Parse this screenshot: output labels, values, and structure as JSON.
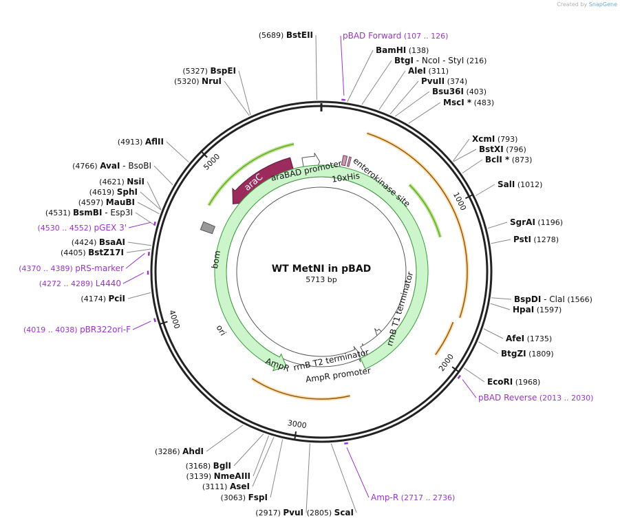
{
  "watermark": {
    "prefix": "Created by",
    "brand": "SnapGene"
  },
  "plasmid": {
    "name": "WT MetNI in pBAD",
    "size_label": "5713 bp",
    "length": 5713
  },
  "ticks": [
    {
      "pos": 1000,
      "label": "1000"
    },
    {
      "pos": 2000,
      "label": "2000"
    },
    {
      "pos": 3000,
      "label": "3000"
    },
    {
      "pos": 4000,
      "label": "4000"
    },
    {
      "pos": 5000,
      "label": "5000"
    }
  ],
  "sites_right": [
    {
      "name": "BamHI",
      "pos": 138,
      "coord": "(138)"
    },
    {
      "name": "BtgI",
      "extra": "NcoI - StyI",
      "pos": 216,
      "coord": "(216)"
    },
    {
      "name": "AleI",
      "pos": 311,
      "coord": "(311)"
    },
    {
      "name": "PvuII",
      "pos": 374,
      "coord": "(374)"
    },
    {
      "name": "Bsu36I",
      "pos": 403,
      "coord": "(403)"
    },
    {
      "name": "MscI *",
      "pos": 483,
      "coord": "(483)"
    },
    {
      "name": "XcmI",
      "pos": 793,
      "coord": "(793)"
    },
    {
      "name": "BstXI",
      "pos": 796,
      "coord": "(796)"
    },
    {
      "name": "BclI *",
      "pos": 873,
      "coord": "(873)"
    },
    {
      "name": "SalI",
      "pos": 1012,
      "coord": "(1012)"
    },
    {
      "name": "SgrAI",
      "pos": 1196,
      "coord": "(1196)"
    },
    {
      "name": "PstI",
      "pos": 1278,
      "coord": "(1278)"
    },
    {
      "name": "BspDI",
      "extra": "ClaI",
      "pos": 1566,
      "coord": "(1566)"
    },
    {
      "name": "HpaI",
      "pos": 1597,
      "coord": "(1597)"
    },
    {
      "name": "AfeI",
      "pos": 1735,
      "coord": "(1735)"
    },
    {
      "name": "BtgZI",
      "pos": 1809,
      "coord": "(1809)"
    },
    {
      "name": "EcoRI",
      "pos": 1968,
      "coord": "(1968)"
    }
  ],
  "sites_left": [
    {
      "name": "BstEII",
      "pos": 5689,
      "coord": "(5689)"
    },
    {
      "name": "BspEI",
      "pos": 5327,
      "coord": "(5327)"
    },
    {
      "name": "NruI",
      "pos": 5320,
      "coord": "(5320)"
    },
    {
      "name": "AflII",
      "pos": 4913,
      "coord": "(4913)"
    },
    {
      "name": "AvaI",
      "extra": "BsoBI",
      "pos": 4766,
      "coord": "(4766)"
    },
    {
      "name": "NsiI",
      "pos": 4621,
      "coord": "(4621)"
    },
    {
      "name": "SphI",
      "pos": 4619,
      "coord": "(4619)"
    },
    {
      "name": "MauBI",
      "pos": 4597,
      "coord": "(4597)"
    },
    {
      "name": "BsmBI",
      "extra": "Esp3I",
      "pos": 4531,
      "coord": "(4531)"
    },
    {
      "name": "BsaAI",
      "pos": 4424,
      "coord": "(4424)"
    },
    {
      "name": "BstZ17I",
      "pos": 4405,
      "coord": "(4405)"
    },
    {
      "name": "PciI",
      "pos": 4174,
      "coord": "(4174)"
    }
  ],
  "sites_bottom": [
    {
      "name": "AhdI",
      "pos": 3286,
      "coord": "(3286)"
    },
    {
      "name": "BglI",
      "pos": 3168,
      "coord": "(3168)"
    },
    {
      "name": "NmeAIII",
      "pos": 3139,
      "coord": "(3139)"
    },
    {
      "name": "AseI",
      "pos": 3111,
      "coord": "(3111)"
    },
    {
      "name": "FspI",
      "pos": 3063,
      "coord": "(3063)"
    },
    {
      "name": "PvuI",
      "pos": 2917,
      "coord": "(2917)"
    },
    {
      "name": "ScaI",
      "pos": 2805,
      "coord": "(2805)"
    }
  ],
  "primers": [
    {
      "name": "pBAD Forward",
      "range": "(107 .. 126)",
      "pos": 116
    },
    {
      "name": "pBAD Reverse",
      "range": "(2013 .. 2030)",
      "pos": 2021
    },
    {
      "name": "Amp-R",
      "range": "(2717 .. 2736)",
      "pos": 2726
    },
    {
      "name": "pBR322ori-F",
      "range": "(4019 .. 4038)",
      "pos": 4028
    },
    {
      "name": "L4440",
      "range": "(4272 .. 4289)",
      "pos": 4280
    },
    {
      "name": "pRS-marker",
      "range": "(4370 .. 4389)",
      "pos": 4379
    },
    {
      "name": "pGEX 3'",
      "range": "(4530 .. 4552)",
      "pos": 4541
    }
  ],
  "features": [
    {
      "name": "araC",
      "start": 5450,
      "end": 4880,
      "type": "cds"
    },
    {
      "name": "araBAD promoter",
      "start": 5610,
      "end": 5700,
      "type": "promoter"
    },
    {
      "name": "10xHis",
      "start": 160,
      "end": 200,
      "type": "tag"
    },
    {
      "name": "enterokinase site",
      "start": 210,
      "end": 240,
      "type": "site"
    },
    {
      "name": "rrnB T1 terminator",
      "start": 2100,
      "end": 2190,
      "type": "terminator"
    },
    {
      "name": "rrnB T2 terminator",
      "start": 2290,
      "end": 2340,
      "type": "terminator"
    },
    {
      "name": "AmpR promoter",
      "start": 2360,
      "end": 2450,
      "type": "promoter"
    },
    {
      "name": "AmpR",
      "start": 2460,
      "end": 3250,
      "type": "cds"
    },
    {
      "name": "ori",
      "start": 3850,
      "end": 4330,
      "type": "origin"
    },
    {
      "name": "bom",
      "start": 4560,
      "end": 4630,
      "type": "misc"
    }
  ],
  "colors": {
    "primer": "#9933cc",
    "orf": "#f5a623",
    "arac": "#9b2b5c",
    "arac_orf": "#6aaa2a",
    "ampr": "#ccf5cc",
    "ori": "#ffff00",
    "bom": "#999999"
  }
}
